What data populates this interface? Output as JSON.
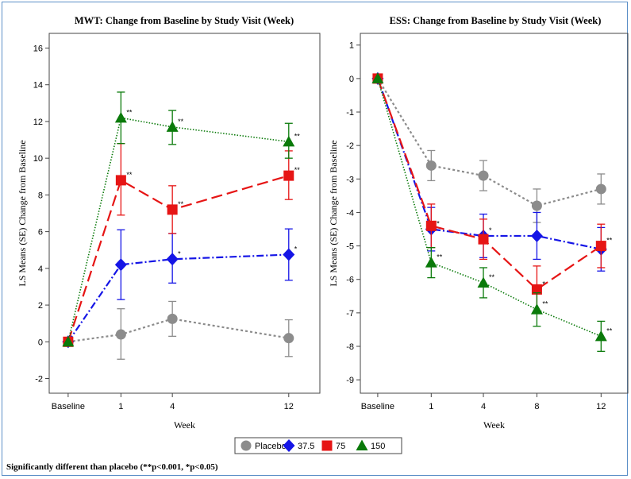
{
  "footnote": "Significantly different than placebo (**p<0.001, *p<0.05)",
  "colors": {
    "Placebo": "#8c8c8c",
    "37.5": "#1515e6",
    "75": "#e61515",
    "150": "#0a7a0a"
  },
  "legend": [
    {
      "name": "Placebo",
      "marker": "circle"
    },
    {
      "name": "37.5",
      "marker": "diamond"
    },
    {
      "name": "75",
      "marker": "square"
    },
    {
      "name": "150",
      "marker": "triangle"
    }
  ],
  "chart_data": [
    {
      "type": "line",
      "title": "MWT: Change from Baseline by Study Visit (Week)",
      "xlabel": "Week",
      "ylabel": "LS Means (SE) Change from Baseline",
      "categories": [
        "Baseline",
        "1",
        "4",
        "12"
      ],
      "ylim": [
        -2.8,
        16.8
      ],
      "yticks": [
        -2,
        0,
        2,
        4,
        6,
        8,
        10,
        12,
        14,
        16
      ],
      "grid": false,
      "series": [
        {
          "name": "Placebo",
          "values": [
            0,
            0.4,
            1.25,
            0.2
          ],
          "se_low": [
            0,
            -0.95,
            0.3,
            -0.8
          ],
          "se_high": [
            0,
            1.8,
            2.2,
            1.2
          ],
          "stars": [
            "",
            "",
            "",
            ""
          ]
        },
        {
          "name": "37.5",
          "values": [
            0,
            4.2,
            4.5,
            4.75
          ],
          "se_low": [
            0,
            2.3,
            3.2,
            3.35
          ],
          "se_high": [
            0,
            6.1,
            5.9,
            6.15
          ],
          "stars": [
            "",
            "",
            "*",
            "*"
          ]
        },
        {
          "name": "75",
          "values": [
            0,
            8.8,
            7.2,
            9.05
          ],
          "se_low": [
            0,
            6.9,
            5.9,
            7.75
          ],
          "se_high": [
            0,
            10.8,
            8.5,
            10.4
          ],
          "stars": [
            "",
            "**",
            "**",
            "**"
          ]
        },
        {
          "name": "150",
          "values": [
            0,
            12.2,
            11.7,
            10.9
          ],
          "se_low": [
            0,
            10.8,
            10.75,
            10.0
          ],
          "se_high": [
            0,
            13.6,
            12.6,
            11.9
          ],
          "stars": [
            "",
            "**",
            "**",
            "**"
          ]
        }
      ]
    },
    {
      "type": "line",
      "title": "ESS: Change from Baseline by Study Visit (Week)",
      "xlabel": "Week",
      "ylabel": "LS Means (SE) Change from Baseline",
      "categories": [
        "Baseline",
        "1",
        "4",
        "8",
        "12"
      ],
      "ylim": [
        -9.4,
        1.35
      ],
      "yticks": [
        -9,
        -8,
        -7,
        -6,
        -5,
        -4,
        -3,
        -2,
        -1,
        0,
        1
      ],
      "grid": false,
      "series": [
        {
          "name": "Placebo",
          "values": [
            0,
            -2.6,
            -2.9,
            -3.8,
            -3.3
          ],
          "se_low": [
            0,
            -3.05,
            -3.35,
            -4.3,
            -3.75
          ],
          "se_high": [
            0,
            -2.15,
            -2.45,
            -3.3,
            -2.85
          ],
          "stars": [
            "",
            "",
            "",
            "",
            ""
          ]
        },
        {
          "name": "37.5",
          "values": [
            0,
            -4.5,
            -4.7,
            -4.7,
            -5.1
          ],
          "se_low": [
            0,
            -5.15,
            -5.35,
            -5.4,
            -5.75
          ],
          "se_high": [
            0,
            -3.85,
            -4.05,
            -4.0,
            -4.45
          ],
          "stars": [
            "",
            "*",
            "*",
            "",
            ""
          ]
        },
        {
          "name": "75",
          "values": [
            0,
            -4.4,
            -4.8,
            -6.3,
            -5.0
          ],
          "se_low": [
            0,
            -5.05,
            -5.4,
            -7.0,
            -5.65
          ],
          "se_high": [
            0,
            -3.75,
            -4.2,
            -5.6,
            -4.35
          ],
          "stars": [
            "",
            "",
            "",
            "*",
            "**"
          ]
        },
        {
          "name": "150",
          "values": [
            0,
            -5.5,
            -6.1,
            -6.9,
            -7.7
          ],
          "se_low": [
            0,
            -5.95,
            -6.55,
            -7.4,
            -8.15
          ],
          "se_high": [
            0,
            -5.05,
            -5.65,
            -6.4,
            -7.25
          ],
          "stars": [
            "",
            "**",
            "**",
            "**",
            "**"
          ]
        }
      ]
    }
  ]
}
